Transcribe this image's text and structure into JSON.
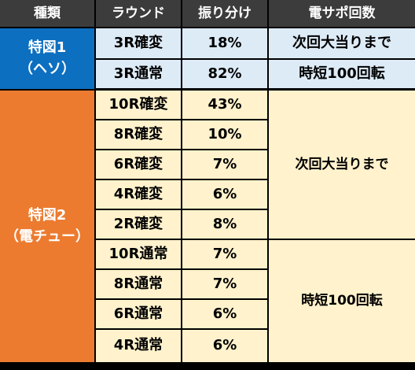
{
  "headers": [
    "種類",
    "ラウンド",
    "振り分け",
    "電サポ回数"
  ],
  "hesso": {
    "type_line1": "特図1",
    "type_line2": "（ヘソ）",
    "rows": [
      {
        "round": "3R確変",
        "ratio": "18%",
        "support": "次回大当りまで"
      },
      {
        "round": "3R通常",
        "ratio": "82%",
        "support": "時短100回転"
      }
    ]
  },
  "denchu": {
    "type_line1": "特図2",
    "type_line2": "（電チュー）",
    "kakuhen_rows": [
      {
        "round": "10R確変",
        "ratio": "43%"
      },
      {
        "round": "8R確変",
        "ratio": "10%"
      },
      {
        "round": "6R確変",
        "ratio": "7%"
      },
      {
        "round": "4R確変",
        "ratio": "6%"
      },
      {
        "round": "2R確変",
        "ratio": "8%"
      }
    ],
    "kakuhen_support": "次回大当りまで",
    "tsujo_rows": [
      {
        "round": "10R通常",
        "ratio": "7%"
      },
      {
        "round": "8R通常",
        "ratio": "7%"
      },
      {
        "round": "6R通常",
        "ratio": "6%"
      },
      {
        "round": "4R通常",
        "ratio": "6%"
      }
    ],
    "tsujo_support": "時短100回転"
  },
  "colors": {
    "header_bg": "#3c3c3c",
    "hesso_bg": "#0d6fc0",
    "denchu_bg": "#ec7b30",
    "hesso_cells": "#ddebf7",
    "denchu_cells": "#fff2cc"
  }
}
